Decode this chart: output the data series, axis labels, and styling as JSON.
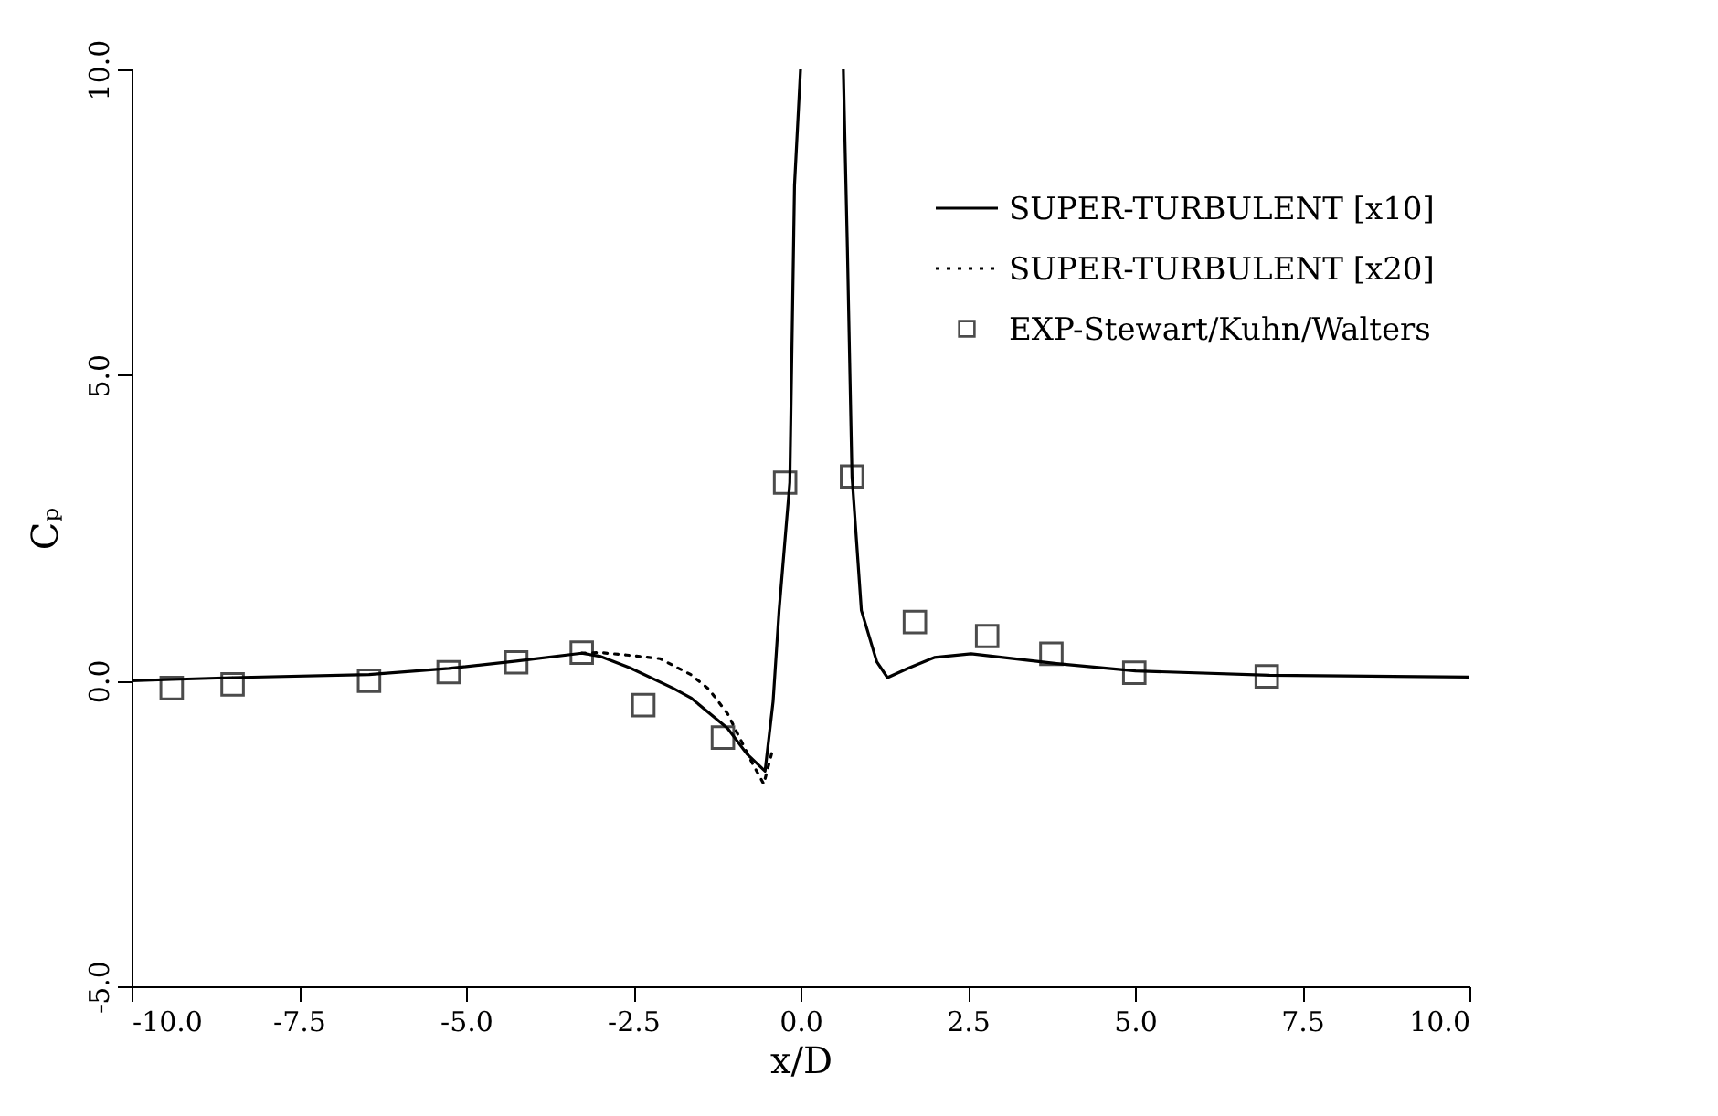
{
  "chart_data": {
    "type": "line",
    "xlabel": "x/D",
    "ylabel": "Cₚ",
    "xlim": [
      -10,
      10
    ],
    "ylim": [
      -5,
      10
    ],
    "xticks": [
      {
        "value": -10,
        "label": "-10.0"
      },
      {
        "value": -7.5,
        "label": "-7.5"
      },
      {
        "value": -5,
        "label": "-5.0"
      },
      {
        "value": -2.5,
        "label": "-2.5"
      },
      {
        "value": 0,
        "label": "0.0"
      },
      {
        "value": 2.5,
        "label": "2.5"
      },
      {
        "value": 5,
        "label": "5.0"
      },
      {
        "value": 7.5,
        "label": "7.5"
      },
      {
        "value": 10,
        "label": "10.0"
      }
    ],
    "yticks": [
      {
        "value": -5,
        "label": "-5.0"
      },
      {
        "value": 0,
        "label": "0.0"
      },
      {
        "value": 5,
        "label": "5.0"
      },
      {
        "value": 10,
        "label": "10.0"
      }
    ],
    "grid": false,
    "legend": "top right",
    "series": [
      {
        "name": "SUPER-TURBULENT [x10]",
        "color": "#000000",
        "line_style": "solid",
        "marker": "none",
        "x": [
          -10,
          -9.4,
          -8.5,
          -6.45,
          -5.26,
          -4.25,
          -3.27,
          -3.0,
          -2.55,
          -1.91,
          -1.64,
          -1.09,
          -0.8,
          -0.53,
          -0.41,
          -0.32,
          -0.16,
          -0.09,
          0.0,
          0.3,
          0.64,
          0.7,
          0.77,
          0.91,
          1.14,
          1.3,
          1.6,
          2.0,
          2.55,
          3.83,
          5.01,
          7.01,
          10
        ],
        "values": [
          0.0,
          0.02,
          0.05,
          0.1,
          0.2,
          0.32,
          0.45,
          0.4,
          0.21,
          -0.12,
          -0.28,
          -0.78,
          -1.2,
          -1.48,
          -0.34,
          1.15,
          3.24,
          8.1,
          10,
          null,
          10,
          7.1,
          3.34,
          1.15,
          0.31,
          0.05,
          0.2,
          0.38,
          0.44,
          0.28,
          0.16,
          0.09,
          0.06
        ]
      },
      {
        "name": "SUPER-TURBULENT [x20]",
        "color": "#000000",
        "line_style": "dotted",
        "marker": "none",
        "x": [
          -3.27,
          -3.0,
          -2.6,
          -2.1,
          -1.64,
          -1.37,
          -1.09,
          -0.73,
          -0.55,
          -0.41
        ],
        "values": [
          0.45,
          0.46,
          0.42,
          0.36,
          0.1,
          -0.14,
          -0.54,
          -1.33,
          -1.69,
          -1.1
        ]
      },
      {
        "name": "EXP-Stewart/Kuhn/Walters",
        "type": "scatter",
        "color": "#000000",
        "marker": "square",
        "x": [
          -9.4,
          -8.49,
          -6.45,
          -5.26,
          -4.25,
          -3.27,
          -2.35,
          -1.16,
          -0.23,
          0.77,
          1.71,
          2.79,
          3.75,
          4.99,
          6.97
        ],
        "values": [
          -0.12,
          -0.06,
          0.0,
          0.14,
          0.3,
          0.46,
          -0.4,
          -0.93,
          3.24,
          3.34,
          0.96,
          0.73,
          0.44,
          0.13,
          0.07
        ]
      }
    ]
  }
}
